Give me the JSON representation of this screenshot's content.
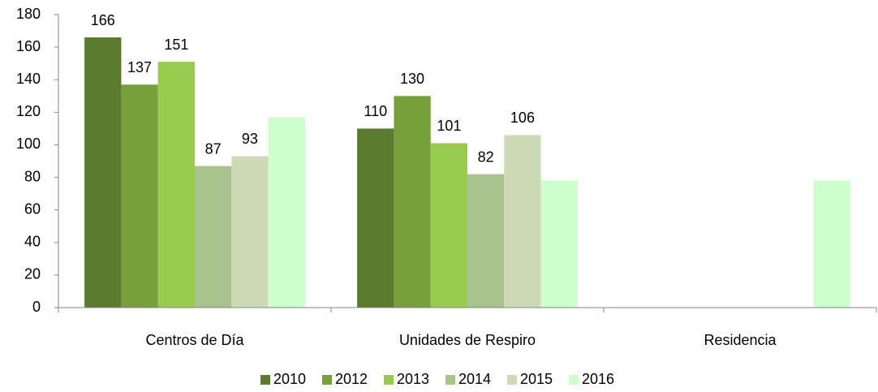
{
  "chart_data": {
    "type": "bar",
    "categories": [
      "Centros de Día",
      "Unidades de Respiro",
      "Residencia"
    ],
    "series": [
      {
        "name": "2010",
        "color": "#5b7b2f",
        "values": [
          166,
          110,
          null
        ]
      },
      {
        "name": "2012",
        "color": "#77a03c",
        "values": [
          137,
          130,
          null
        ]
      },
      {
        "name": "2013",
        "color": "#98cb4c",
        "values": [
          151,
          101,
          null
        ]
      },
      {
        "name": "2014",
        "color": "#a8c38d",
        "values": [
          87,
          82,
          null
        ]
      },
      {
        "name": "2015",
        "color": "#cddab8",
        "values": [
          93,
          106,
          null
        ]
      },
      {
        "name": "2016",
        "color": "#ccffcc",
        "values": [
          117,
          78,
          78
        ],
        "data_labels": false
      }
    ],
    "ylim": [
      0,
      180
    ],
    "yticks": [
      0,
      20,
      40,
      60,
      80,
      100,
      120,
      140,
      160,
      180
    ],
    "grid": false,
    "legend": "bottom"
  }
}
